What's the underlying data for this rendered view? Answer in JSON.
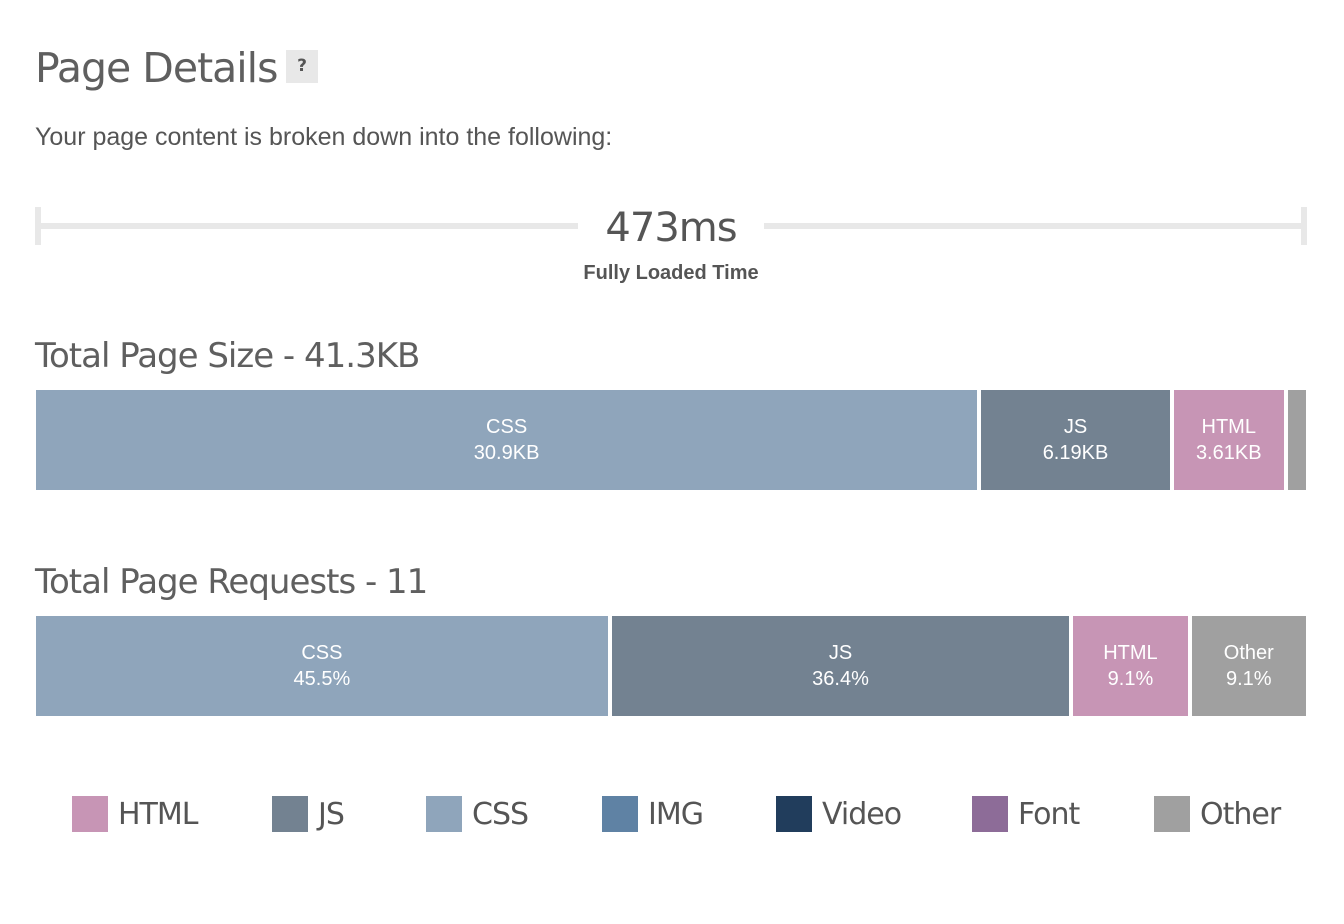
{
  "header": {
    "title": "Page Details",
    "help_label": "?",
    "subtitle": "Your page content is broken down into the following:"
  },
  "timing": {
    "value": "473ms",
    "label": "Fully Loaded Time"
  },
  "colors": {
    "HTML": "#c795b5",
    "JS": "#738291",
    "CSS": "#8fa5bb",
    "IMG": "#5f82a4",
    "Video": "#213d5c",
    "Font": "#8d6c98",
    "Other": "#a0a0a0"
  },
  "size": {
    "title": "Total Page Size - 41.3KB",
    "segments": [
      {
        "type": "CSS",
        "label": "CSS",
        "value_text": "30.9KB",
        "value": 30.9
      },
      {
        "type": "JS",
        "label": "JS",
        "value_text": "6.19KB",
        "value": 6.19
      },
      {
        "type": "HTML",
        "label": "HTML",
        "value_text": "3.61KB",
        "value": 3.61
      },
      {
        "type": "Other",
        "value": 0.6
      }
    ]
  },
  "requests": {
    "title": "Total Page Requests - 11",
    "segments": [
      {
        "type": "CSS",
        "label": "CSS",
        "value_text": "45.5%",
        "value": 45.5
      },
      {
        "type": "JS",
        "label": "JS",
        "value_text": "36.4%",
        "value": 36.4
      },
      {
        "type": "HTML",
        "label": "HTML",
        "value_text": "9.1%",
        "value": 9.1
      },
      {
        "type": "Other",
        "label": "Other",
        "value_text": "9.1%",
        "value": 9.1
      }
    ]
  },
  "legend": [
    {
      "type": "HTML",
      "label": "HTML"
    },
    {
      "type": "JS",
      "label": "JS"
    },
    {
      "type": "CSS",
      "label": "CSS"
    },
    {
      "type": "IMG",
      "label": "IMG"
    },
    {
      "type": "Video",
      "label": "Video"
    },
    {
      "type": "Font",
      "label": "Font"
    },
    {
      "type": "Other",
      "label": "Other"
    }
  ]
}
